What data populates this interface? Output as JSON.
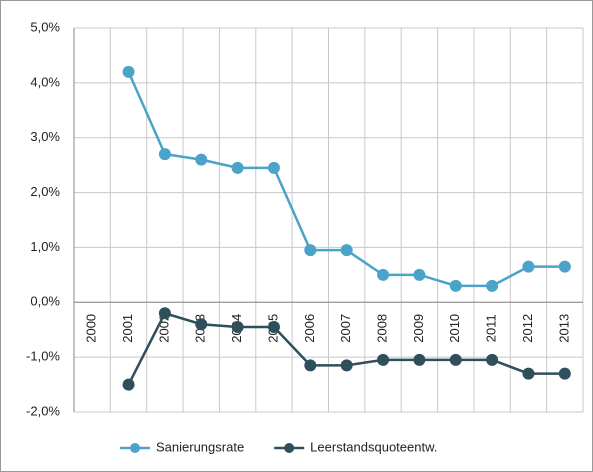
{
  "chart_data": {
    "type": "line",
    "categories": [
      "2000",
      "2001",
      "2002",
      "2003",
      "2004",
      "2005",
      "2006",
      "2007",
      "2008",
      "2009",
      "2010",
      "2011",
      "2012",
      "2013"
    ],
    "series": [
      {
        "name": "Sanierungsrate",
        "color": "#4ba3c9",
        "values": [
          null,
          4.2,
          2.7,
          2.6,
          2.45,
          2.45,
          0.95,
          0.95,
          0.5,
          0.5,
          0.3,
          0.3,
          0.65,
          0.65
        ]
      },
      {
        "name": "Leerstandsquoteentw.",
        "color": "#2f4f5c",
        "values": [
          null,
          -1.5,
          -0.2,
          -0.4,
          -0.45,
          -0.45,
          -1.15,
          -1.15,
          -1.05,
          -1.05,
          -1.05,
          -1.05,
          -1.3,
          -1.3
        ]
      }
    ],
    "ylim": [
      -2,
      5
    ],
    "yticks": [
      {
        "value": -2,
        "label": "-2,0%"
      },
      {
        "value": -1,
        "label": "-1,0%"
      },
      {
        "value": 0,
        "label": "0,0%"
      },
      {
        "value": 1,
        "label": "1,0%"
      },
      {
        "value": 2,
        "label": "2,0%"
      },
      {
        "value": 3,
        "label": "3,0%"
      },
      {
        "value": 4,
        "label": "4,0%"
      },
      {
        "value": 5,
        "label": "5,0%"
      }
    ],
    "grid": true,
    "legend": "bottom"
  }
}
